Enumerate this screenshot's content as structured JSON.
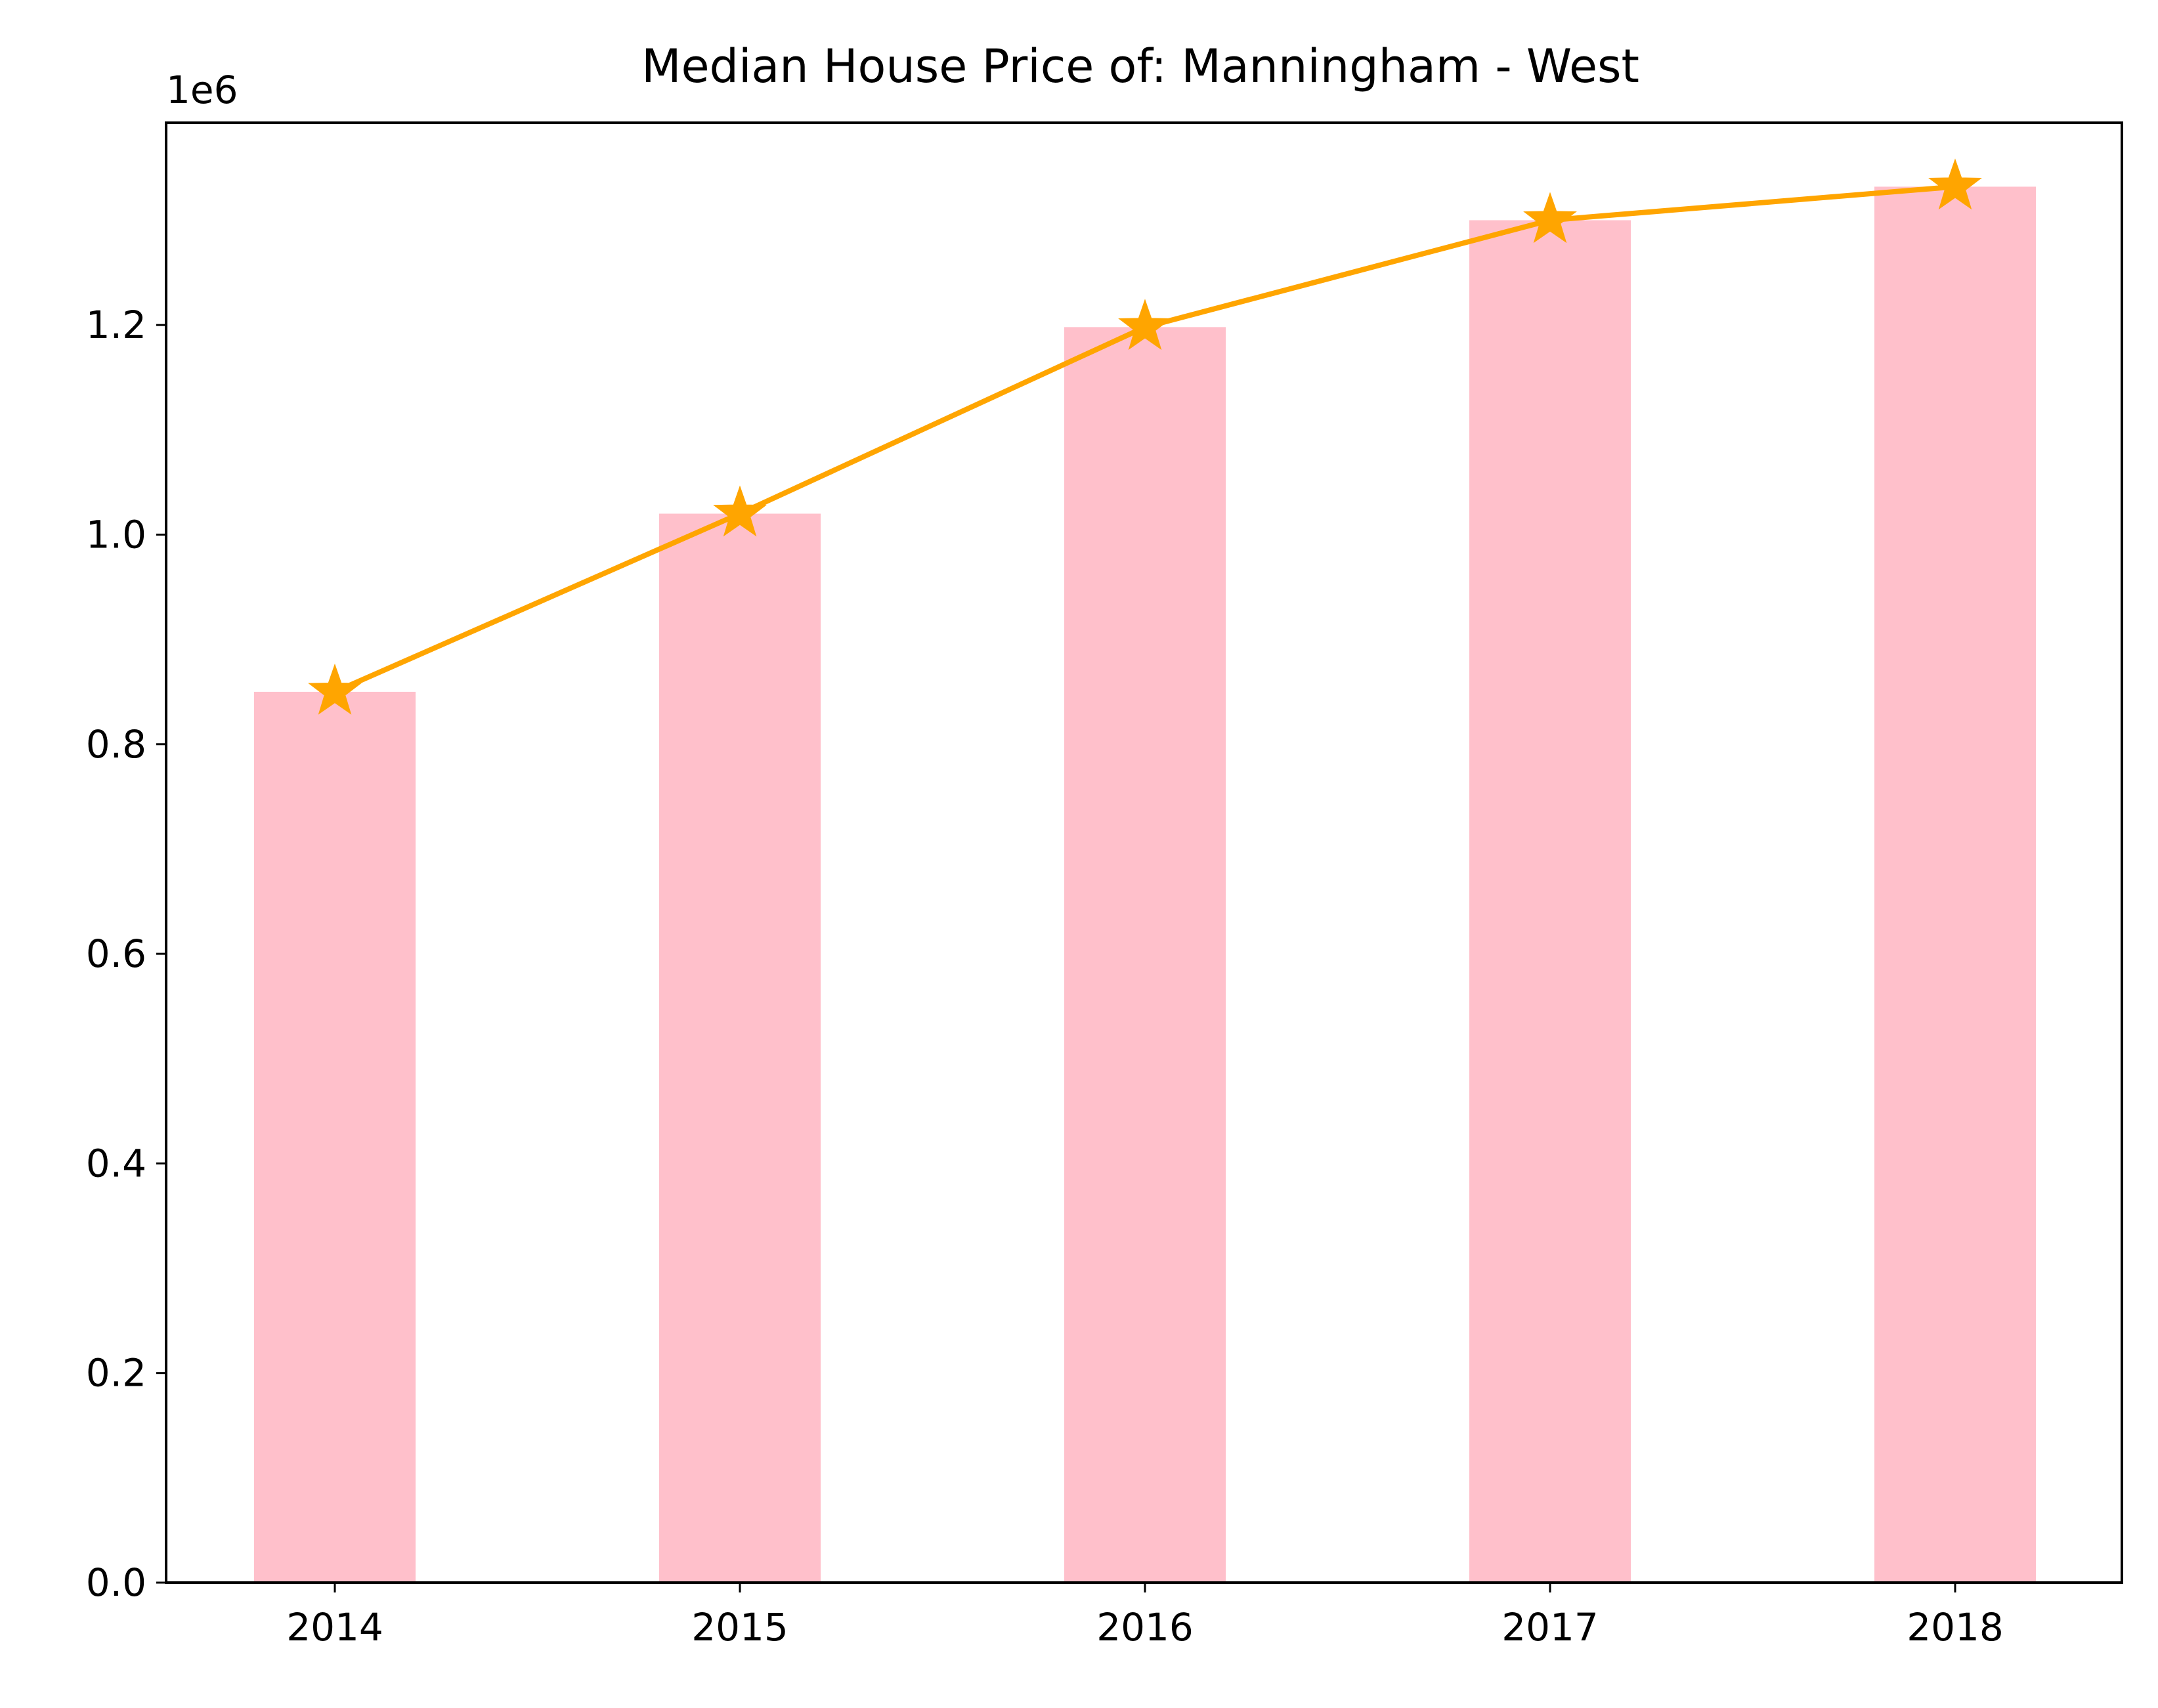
{
  "chart_data": {
    "type": "bar",
    "title": "Median House Price of: Manningham - West",
    "xlabel": "",
    "ylabel": "",
    "categories": [
      "2014",
      "2015",
      "2016",
      "2017",
      "2018"
    ],
    "series": [
      {
        "type": "bar",
        "values": [
          850000,
          1020000,
          1198000,
          1300000,
          1332000
        ],
        "color": "#ffc0cb"
      },
      {
        "type": "line",
        "marker": "star",
        "values": [
          850000,
          1020000,
          1198000,
          1300000,
          1332000
        ],
        "color": "#ffa500"
      }
    ],
    "ylim": [
      0,
      1393000
    ],
    "yticks": [
      0,
      200000,
      400000,
      600000,
      800000,
      1000000,
      1200000
    ],
    "ytick_labels": [
      "0.0",
      "0.2",
      "0.4",
      "0.6",
      "0.8",
      "1.0",
      "1.2"
    ],
    "y_offset_label": "1e6",
    "grid": false,
    "legend": "none"
  }
}
